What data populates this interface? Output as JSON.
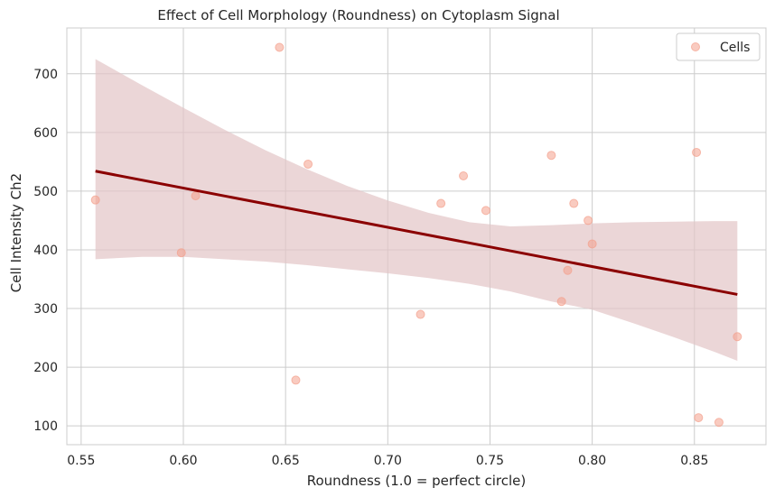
{
  "chart_data": {
    "type": "scatter",
    "title": "Effect of Cell Morphology (Roundness) on Cytoplasm Signal",
    "xlabel": "Roundness (1.0 = perfect circle)",
    "ylabel": "Cell Intensity Ch2",
    "xlim": [
      0.543,
      0.885
    ],
    "ylim": [
      68,
      778
    ],
    "xticks": [
      0.55,
      0.6,
      0.65,
      0.7,
      0.75,
      0.8,
      0.85
    ],
    "xtick_labels": [
      "0.55",
      "0.60",
      "0.65",
      "0.70",
      "0.75",
      "0.80",
      "0.85"
    ],
    "yticks": [
      100,
      200,
      300,
      400,
      500,
      600,
      700
    ],
    "ytick_labels": [
      "100",
      "200",
      "300",
      "400",
      "500",
      "600",
      "700"
    ],
    "grid": true,
    "legend": {
      "position": "top-right",
      "entries": [
        "Cells"
      ]
    },
    "series": [
      {
        "name": "Cells",
        "kind": "scatter",
        "color": "#f4a08c",
        "points": [
          {
            "x": 0.557,
            "y": 485
          },
          {
            "x": 0.599,
            "y": 395
          },
          {
            "x": 0.606,
            "y": 492
          },
          {
            "x": 0.647,
            "y": 745
          },
          {
            "x": 0.655,
            "y": 178
          },
          {
            "x": 0.661,
            "y": 546
          },
          {
            "x": 0.716,
            "y": 290
          },
          {
            "x": 0.726,
            "y": 479
          },
          {
            "x": 0.737,
            "y": 526
          },
          {
            "x": 0.748,
            "y": 467
          },
          {
            "x": 0.78,
            "y": 561
          },
          {
            "x": 0.785,
            "y": 312
          },
          {
            "x": 0.788,
            "y": 365
          },
          {
            "x": 0.791,
            "y": 479
          },
          {
            "x": 0.798,
            "y": 450
          },
          {
            "x": 0.8,
            "y": 410
          },
          {
            "x": 0.851,
            "y": 566
          },
          {
            "x": 0.852,
            "y": 114
          },
          {
            "x": 0.862,
            "y": 106
          },
          {
            "x": 0.871,
            "y": 252
          }
        ]
      },
      {
        "name": "Regression fit",
        "kind": "line",
        "color": "#8b0000",
        "x": [
          0.557,
          0.871
        ],
        "y": [
          534,
          324
        ]
      },
      {
        "name": "Confidence band",
        "kind": "band",
        "color": "#e3c4c6",
        "x": [
          0.557,
          0.58,
          0.6,
          0.62,
          0.64,
          0.66,
          0.68,
          0.7,
          0.72,
          0.74,
          0.76,
          0.78,
          0.8,
          0.82,
          0.84,
          0.86,
          0.871
        ],
        "upper": [
          725,
          680,
          642,
          605,
          570,
          538,
          509,
          484,
          463,
          447,
          440,
          442,
          445,
          447,
          448,
          449,
          449
        ],
        "lower": [
          384,
          388,
          388,
          384,
          380,
          374,
          367,
          360,
          352,
          342,
          329,
          312,
          298,
          275,
          251,
          226,
          211
        ]
      }
    ]
  }
}
